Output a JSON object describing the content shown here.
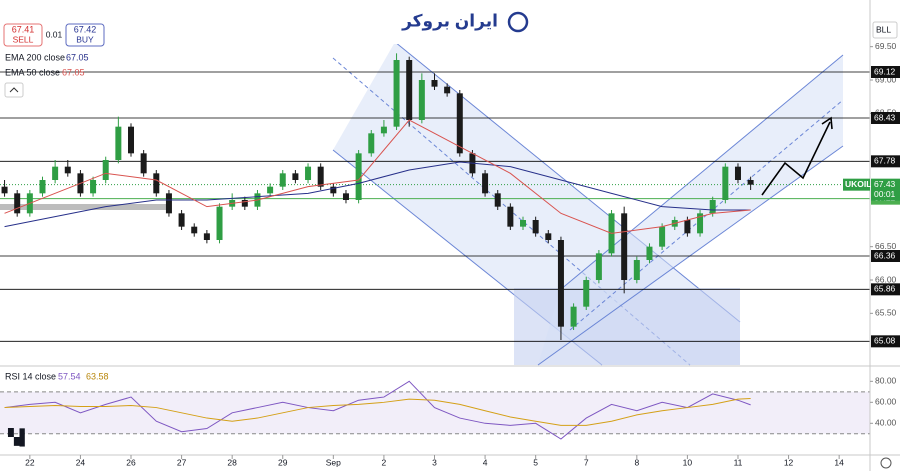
{
  "logo": "ایران بروکر",
  "scale_mode": "BLL",
  "quote": {
    "sell_price": 67.41,
    "sell_label": "SELL",
    "spread": 0.01,
    "buy_price": 67.42,
    "buy_label": "BUY"
  },
  "chart_data": [
    {
      "type": "candlestick",
      "symbol": "UKOIL",
      "x": [
        -0.5,
        -0.25,
        0,
        0.25,
        0.5,
        0.75,
        1,
        1.25,
        1.5,
        1.75,
        2,
        2.25,
        2.5,
        2.75,
        3,
        3.25,
        3.5,
        3.75,
        4,
        4.25,
        4.5,
        4.75,
        5,
        5.25,
        5.5,
        5.75,
        6,
        6.25,
        6.5,
        6.75,
        7,
        7.25,
        7.5,
        7.75,
        8,
        8.25,
        8.5,
        8.75,
        9,
        9.25,
        9.5,
        9.75,
        10,
        10.25,
        10.5,
        10.75,
        11,
        11.25,
        11.5,
        11.75,
        12,
        12.25,
        12.5,
        12.75,
        13,
        13.25,
        13.5,
        13.75,
        14,
        14.25
      ],
      "open": [
        67.4,
        67.3,
        67.0,
        67.3,
        67.5,
        67.7,
        67.6,
        67.3,
        67.5,
        67.8,
        68.3,
        67.9,
        67.6,
        67.3,
        67.0,
        66.8,
        66.7,
        66.6,
        67.1,
        67.2,
        67.1,
        67.3,
        67.4,
        67.6,
        67.5,
        67.7,
        67.4,
        67.3,
        67.2,
        67.9,
        68.2,
        68.3,
        69.3,
        68.4,
        69.0,
        68.9,
        68.8,
        67.9,
        67.6,
        67.3,
        67.1,
        66.8,
        66.9,
        66.7,
        66.6,
        65.3,
        65.6,
        66.0,
        66.4,
        67.0,
        66.0,
        66.3,
        66.5,
        66.8,
        66.9,
        66.7,
        67.0,
        67.2,
        67.7,
        67.5
      ],
      "high": [
        67.5,
        67.35,
        67.35,
        67.55,
        67.8,
        67.8,
        67.65,
        67.55,
        67.85,
        68.45,
        68.35,
        67.95,
        67.65,
        67.35,
        67.05,
        66.85,
        66.75,
        67.15,
        67.3,
        67.25,
        67.35,
        67.45,
        67.65,
        67.65,
        67.75,
        67.75,
        67.45,
        67.35,
        67.95,
        68.25,
        68.4,
        69.4,
        69.35,
        69.1,
        69.1,
        68.95,
        68.85,
        67.95,
        67.65,
        67.35,
        67.15,
        66.95,
        66.95,
        66.75,
        66.65,
        65.65,
        66.05,
        66.45,
        67.05,
        67.1,
        66.35,
        66.55,
        66.85,
        66.95,
        66.95,
        67.05,
        67.25,
        67.75,
        67.75,
        67.55
      ],
      "low": [
        67.25,
        66.95,
        66.95,
        67.25,
        67.45,
        67.55,
        67.25,
        67.25,
        67.45,
        67.75,
        67.85,
        67.55,
        67.25,
        66.95,
        66.75,
        66.65,
        66.55,
        66.55,
        67.05,
        67.05,
        67.05,
        67.25,
        67.35,
        67.45,
        67.45,
        67.35,
        67.25,
        67.15,
        67.15,
        67.85,
        68.15,
        68.25,
        68.3,
        68.35,
        68.85,
        68.75,
        67.85,
        67.55,
        67.25,
        67.05,
        66.75,
        66.75,
        66.65,
        66.55,
        65.1,
        65.25,
        65.55,
        65.95,
        66.35,
        65.8,
        65.95,
        66.25,
        66.45,
        66.75,
        66.65,
        66.65,
        66.95,
        67.15,
        67.45,
        67.35
      ],
      "close": [
        67.3,
        67.0,
        67.3,
        67.5,
        67.7,
        67.6,
        67.3,
        67.5,
        67.8,
        68.3,
        67.9,
        67.6,
        67.3,
        67.0,
        66.8,
        66.7,
        66.6,
        67.1,
        67.2,
        67.1,
        67.3,
        67.4,
        67.6,
        67.5,
        67.7,
        67.4,
        67.3,
        67.2,
        67.9,
        68.2,
        68.3,
        69.3,
        68.4,
        69.0,
        68.9,
        68.8,
        67.9,
        67.6,
        67.3,
        67.1,
        66.8,
        66.9,
        66.7,
        66.6,
        65.3,
        65.6,
        66.0,
        66.4,
        67.0,
        66.0,
        66.3,
        66.5,
        66.8,
        66.9,
        66.7,
        67.0,
        67.2,
        67.7,
        67.5,
        67.43
      ],
      "up_color": "#2f9e44",
      "down_color": "#1b1b1b",
      "xlim": [
        -0.59,
        16.61
      ],
      "xticks": [
        {
          "value": 0,
          "label": "22"
        },
        {
          "value": 1,
          "label": "24"
        },
        {
          "value": 2,
          "label": "26"
        },
        {
          "value": 3,
          "label": "27"
        },
        {
          "value": 4,
          "label": "28"
        },
        {
          "value": 5,
          "label": "29"
        },
        {
          "value": 6,
          "label": "Sep"
        },
        {
          "value": 7,
          "label": "2"
        },
        {
          "value": 8,
          "label": "3"
        },
        {
          "value": 9,
          "label": "4"
        },
        {
          "value": 10,
          "label": "5"
        },
        {
          "value": 11,
          "label": "7"
        },
        {
          "value": 12,
          "label": "8"
        },
        {
          "value": 13,
          "label": "10"
        },
        {
          "value": 14,
          "label": "11"
        },
        {
          "value": 15,
          "label": "12"
        },
        {
          "value": 16,
          "label": "14"
        }
      ],
      "ylim": [
        64.71,
        70.2
      ],
      "yticks": [
        {
          "value": 69.5,
          "label": "69.50"
        },
        {
          "value": 69,
          "label": "69.00"
        },
        {
          "value": 68.5,
          "label": "68.50"
        },
        {
          "value": 66.5,
          "label": "66.50"
        },
        {
          "value": 66,
          "label": "66.00"
        },
        {
          "value": 65.5,
          "label": "65.50"
        }
      ],
      "series": [
        {
          "name": "EMA 200 close",
          "color": "#27308a",
          "last": 67.05,
          "x": [
            -0.5,
            0.5,
            1.5,
            2.5,
            3.5,
            4.5,
            5.5,
            6.5,
            7.5,
            8.5,
            9.5,
            10.5,
            11.5,
            12.5,
            13.5,
            14.25
          ],
          "values": [
            66.8,
            66.95,
            67.1,
            67.2,
            67.2,
            67.25,
            67.3,
            67.45,
            67.65,
            67.77,
            67.7,
            67.5,
            67.3,
            67.1,
            67.05,
            67.05
          ]
        },
        {
          "name": "EMA 50 close",
          "color": "#d9534f",
          "last": 67.05,
          "x": [
            -0.5,
            0.5,
            1.5,
            2.5,
            3.5,
            4.5,
            5.5,
            6.5,
            7.5,
            8.5,
            9.5,
            10.5,
            11.5,
            12.5,
            13.5,
            14.25
          ],
          "values": [
            67.0,
            67.3,
            67.6,
            67.5,
            67.1,
            67.2,
            67.4,
            67.5,
            68.4,
            68.0,
            67.6,
            67.0,
            66.7,
            66.8,
            67.0,
            67.05
          ]
        }
      ],
      "levels": [
        69.12,
        68.43,
        67.78,
        66.36,
        65.86,
        65.08
      ],
      "support_level": 67.22,
      "support_color": "#4caf50",
      "last_price": 67.43,
      "countdown": "00:01"
    },
    {
      "type": "line",
      "title": "RSI 14 close",
      "x": [
        -0.5,
        0,
        0.5,
        1,
        1.5,
        2,
        2.5,
        3,
        3.5,
        4,
        4.5,
        5,
        5.5,
        6,
        6.5,
        7,
        7.5,
        8,
        8.5,
        9,
        9.5,
        10,
        10.5,
        11,
        11.5,
        12,
        12.5,
        13,
        13.5,
        14,
        14.25
      ],
      "series": [
        {
          "color": "#7e57c2",
          "last": 57.54,
          "values": [
            55,
            58,
            60,
            50,
            58,
            65,
            42,
            32,
            35,
            50,
            55,
            60,
            55,
            52,
            62,
            65,
            80,
            55,
            45,
            40,
            38,
            40,
            25,
            45,
            58,
            52,
            60,
            55,
            68,
            62,
            57.54
          ]
        },
        {
          "color": "#d4a017",
          "last": 63.58,
          "values": [
            55,
            56,
            57,
            56,
            56,
            57,
            55,
            50,
            45,
            42,
            45,
            50,
            55,
            57,
            58,
            60,
            63,
            62,
            58,
            52,
            46,
            42,
            38,
            38,
            42,
            48,
            52,
            55,
            58,
            63,
            63.58
          ]
        }
      ],
      "ylim": [
        9.8,
        94.6
      ],
      "yticks": [
        {
          "value": 80,
          "label": "80.00"
        },
        {
          "value": 60,
          "label": "60.00"
        },
        {
          "value": 40,
          "label": "40.00"
        }
      ],
      "bands": [
        30,
        70
      ]
    }
  ]
}
